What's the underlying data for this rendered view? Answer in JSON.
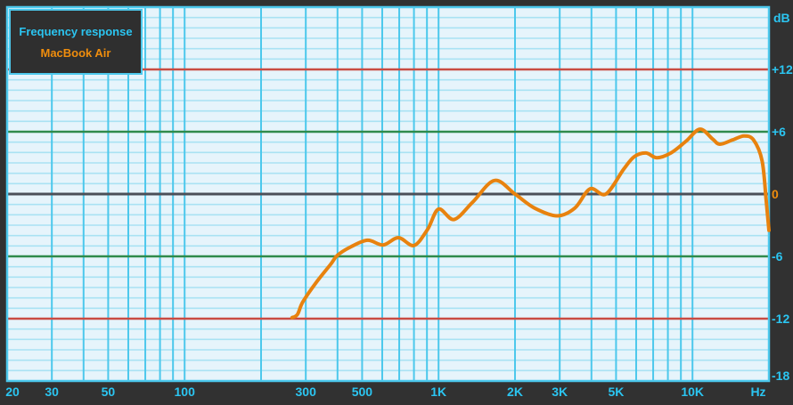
{
  "legend": {
    "title": "Frequency response",
    "device": "MacBook Air"
  },
  "colors": {
    "background": "#313131",
    "plot_background": "#e6f4fb",
    "grid_vertical": "#4cc8ec",
    "grid_minor_horizontal": "#a9e2f3",
    "grid_zero_line": "#4b4f58",
    "grid_plus_minus_6_line": "#2f8b4c",
    "grid_plus_minus_12_line": "#c94b42",
    "plot_border": "#4cc8ec",
    "curve": "#e8820e",
    "label_cyan": "#2bc5f1",
    "label_orange": "#ef8d0d"
  },
  "chart_data": {
    "type": "line",
    "title": "Frequency response",
    "x_axis": {
      "scale": "log",
      "min": 20,
      "max": 20000,
      "unit": "Hz",
      "ticks": [
        {
          "f": 20,
          "label": "20"
        },
        {
          "f": 30,
          "label": "30"
        },
        {
          "f": 50,
          "label": "50"
        },
        {
          "f": 100,
          "label": "100"
        },
        {
          "f": 300,
          "label": "300"
        },
        {
          "f": 500,
          "label": "500"
        },
        {
          "f": 1000,
          "label": "1K"
        },
        {
          "f": 2000,
          "label": "2K"
        },
        {
          "f": 3000,
          "label": "3K"
        },
        {
          "f": 5000,
          "label": "5K"
        },
        {
          "f": 10000,
          "label": "10K"
        }
      ]
    },
    "y_axis": {
      "title": "dB",
      "min": -18,
      "max": 18,
      "minor_step_db": 1,
      "ticks": [
        {
          "db": 12,
          "label": "+12",
          "accent": "cyan"
        },
        {
          "db": 6,
          "label": "+6",
          "accent": "cyan"
        },
        {
          "db": 0,
          "label": "0",
          "accent": "orange"
        },
        {
          "db": -6,
          "label": "-6",
          "accent": "cyan"
        },
        {
          "db": -12,
          "label": "-12",
          "accent": "cyan"
        },
        {
          "db": -18,
          "label": "-18",
          "accent": "cyan"
        }
      ]
    },
    "grid": {
      "vertical_lines_hz": [
        30,
        40,
        50,
        60,
        70,
        80,
        90,
        100,
        200,
        300,
        400,
        500,
        600,
        700,
        800,
        900,
        1000,
        2000,
        3000,
        4000,
        5000,
        6000,
        7000,
        8000,
        9000,
        10000
      ],
      "major_horizontal_db": {
        "red": [
          12,
          -12
        ],
        "green": [
          6,
          -6
        ],
        "dark": [
          0
        ]
      }
    },
    "series": [
      {
        "name": "MacBook Air",
        "color": "#e8820e",
        "points_hz_db": [
          [
            265,
            -11.9
          ],
          [
            278,
            -11.6
          ],
          [
            292,
            -10.4
          ],
          [
            330,
            -8.5
          ],
          [
            375,
            -6.8
          ],
          [
            400,
            -5.9
          ],
          [
            450,
            -5.1
          ],
          [
            525,
            -4.45
          ],
          [
            605,
            -4.9
          ],
          [
            695,
            -4.2
          ],
          [
            800,
            -4.95
          ],
          [
            905,
            -3.4
          ],
          [
            1000,
            -1.45
          ],
          [
            1150,
            -2.45
          ],
          [
            1360,
            -0.8
          ],
          [
            1660,
            1.3
          ],
          [
            2000,
            0.0
          ],
          [
            2390,
            -1.35
          ],
          [
            2930,
            -2.1
          ],
          [
            3440,
            -1.35
          ],
          [
            3950,
            0.5
          ],
          [
            4560,
            0.0
          ],
          [
            5360,
            2.4
          ],
          [
            5900,
            3.6
          ],
          [
            6560,
            3.95
          ],
          [
            7230,
            3.5
          ],
          [
            8220,
            3.95
          ],
          [
            9440,
            5.1
          ],
          [
            10700,
            6.25
          ],
          [
            12000,
            5.3
          ],
          [
            12800,
            4.8
          ],
          [
            14350,
            5.2
          ],
          [
            15950,
            5.6
          ],
          [
            17400,
            5.2
          ],
          [
            18800,
            3.2
          ],
          [
            19500,
            -0.6
          ],
          [
            20000,
            -3.5
          ]
        ]
      }
    ]
  }
}
